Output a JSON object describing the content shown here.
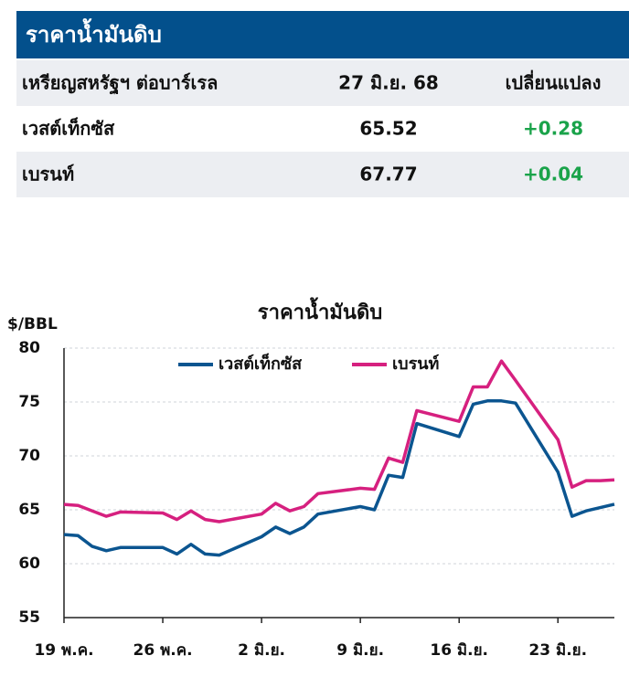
{
  "table": {
    "title": "ราคาน้ำมันดิบ",
    "header": [
      "เหรียญสหรัฐฯ ต่อบาร์เรล",
      "27 มิ.ย. 68",
      "เปลี่ยนแปลง"
    ],
    "rows": [
      [
        "เวสต์เท็กซัส",
        "65.52",
        "+0.28"
      ],
      [
        "เบรนท์",
        "67.77",
        "+0.04"
      ]
    ]
  },
  "chart_data": {
    "type": "line",
    "title": "ราคาน้ำมันดิบ",
    "y_label": "$/BBL",
    "x": [
      "05-19",
      "05-20",
      "05-21",
      "05-22",
      "05-23",
      "05-26",
      "05-27",
      "05-28",
      "05-29",
      "05-30",
      "06-02",
      "06-03",
      "06-04",
      "06-05",
      "06-06",
      "06-09",
      "06-10",
      "06-11",
      "06-12",
      "06-13",
      "06-16",
      "06-17",
      "06-18",
      "06-19",
      "06-20",
      "06-23",
      "06-24",
      "06-25",
      "06-26",
      "06-27"
    ],
    "series": [
      {
        "name": "เวสต์เท็กซัส",
        "color": "#0b5590",
        "values": [
          62.7,
          62.6,
          61.6,
          61.2,
          61.5,
          61.5,
          60.9,
          61.8,
          60.9,
          60.8,
          62.5,
          63.4,
          62.8,
          63.4,
          64.6,
          65.3,
          65.0,
          68.2,
          68.0,
          73.0,
          71.8,
          74.8,
          75.1,
          75.1,
          74.9,
          68.5,
          64.4,
          64.9,
          65.2,
          65.52
        ]
      },
      {
        "name": "เบรนท์",
        "color": "#d6207f",
        "values": [
          65.5,
          65.4,
          64.9,
          64.4,
          64.8,
          64.7,
          64.1,
          64.9,
          64.1,
          63.9,
          64.6,
          65.6,
          64.9,
          65.3,
          66.5,
          67.0,
          66.9,
          69.8,
          69.4,
          74.2,
          73.2,
          76.4,
          76.4,
          78.8,
          77.0,
          71.5,
          67.1,
          67.7,
          67.7,
          67.77
        ]
      }
    ],
    "xlim": [
      "05-19",
      "06-27"
    ],
    "xticks": [
      {
        "value": "05-19",
        "label": "19 พ.ค."
      },
      {
        "value": "05-26",
        "label": "26 พ.ค."
      },
      {
        "value": "06-02",
        "label": "2 มิ.ย."
      },
      {
        "value": "06-09",
        "label": "9 มิ.ย."
      },
      {
        "value": "06-16",
        "label": "16 มิ.ย."
      },
      {
        "value": "06-23",
        "label": "23 มิ.ย."
      }
    ],
    "ylim": [
      55,
      80
    ],
    "yticks": [
      55,
      60,
      65,
      70,
      75,
      80
    ],
    "grid": true,
    "legend": "top"
  }
}
